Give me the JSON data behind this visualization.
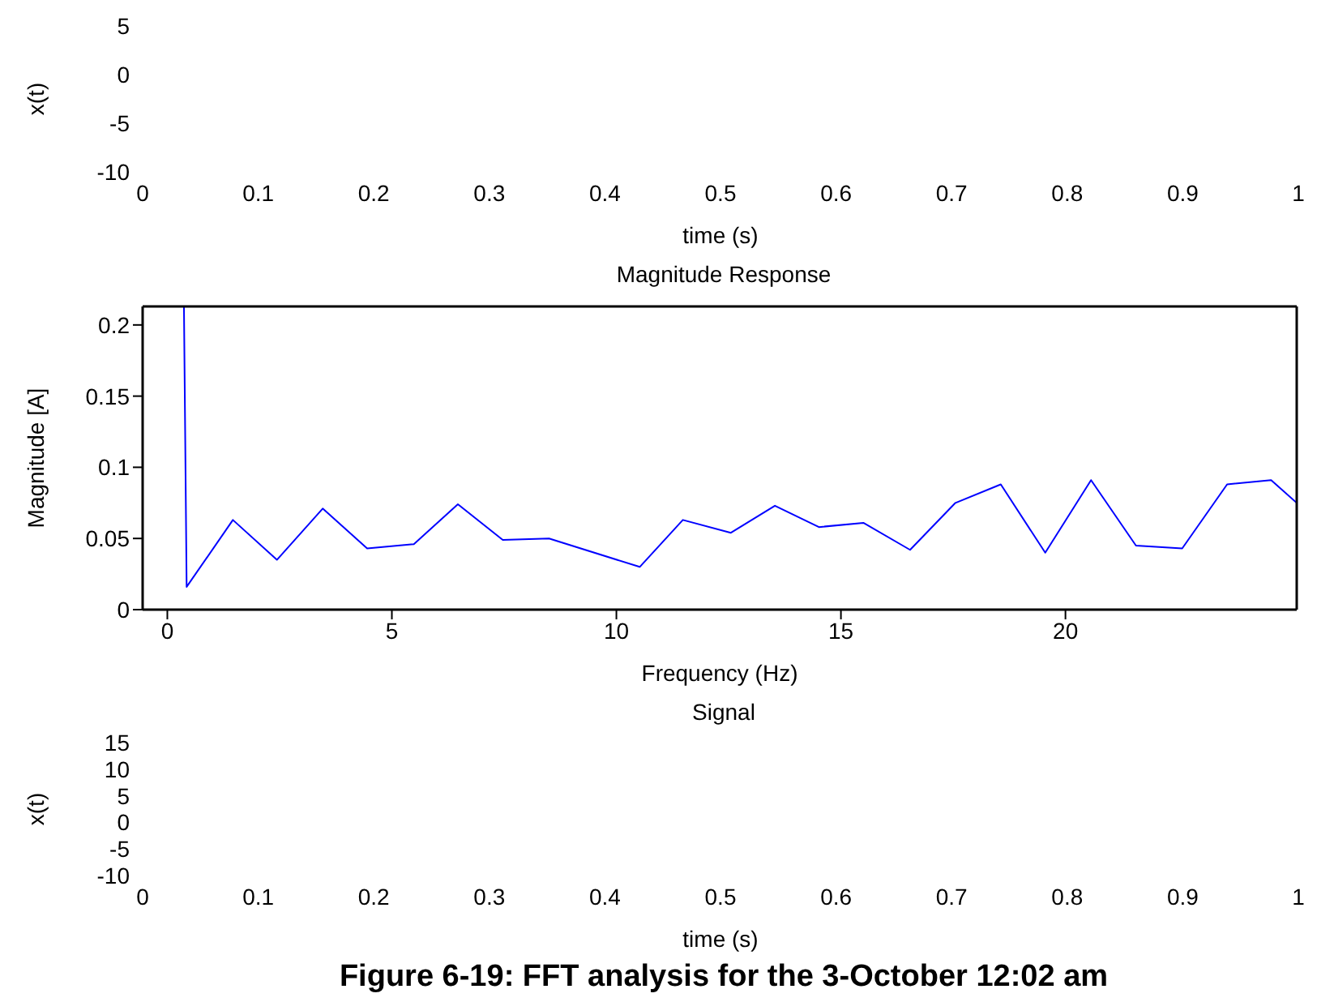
{
  "chart_data": [
    {
      "type": "line",
      "xlabel": "time (s)",
      "ylabel": "x(t)",
      "xlim": [
        0,
        1
      ],
      "xticks": [
        0,
        0.1,
        0.2,
        0.3,
        0.4,
        0.5,
        0.6,
        0.7,
        0.8,
        0.9,
        1
      ],
      "ylim": [
        -10,
        5
      ],
      "yticks": [
        -10,
        -5,
        0,
        5
      ]
    },
    {
      "type": "line",
      "title": "Magnitude Response",
      "xlabel": "Frequency (Hz)",
      "ylabel": "Magnitude [A]",
      "xlim": [
        -0.55,
        25.15
      ],
      "xticks": [
        0,
        5,
        10,
        15,
        20
      ],
      "ylim": [
        0,
        0.213
      ],
      "yticks": [
        0,
        0.05,
        0.1,
        0.15,
        0.2
      ],
      "marker": "none",
      "series": [
        {
          "color": "#0000ff",
          "x": [
            0.37,
            0.43,
            1.46,
            2.44,
            3.46,
            4.45,
            5.49,
            6.47,
            7.47,
            8.5,
            10.52,
            11.48,
            12.55,
            13.53,
            14.51,
            15.5,
            16.54,
            17.55,
            18.56,
            19.55,
            20.57,
            21.57,
            22.6,
            23.6,
            24.58,
            25.15
          ],
          "values": [
            0.213,
            0.016,
            0.063,
            0.035,
            0.071,
            0.043,
            0.046,
            0.074,
            0.049,
            0.05,
            0.03,
            0.063,
            0.054,
            0.073,
            0.058,
            0.061,
            0.042,
            0.075,
            0.088,
            0.04,
            0.091,
            0.045,
            0.043,
            0.088,
            0.091,
            0.075
          ]
        }
      ]
    },
    {
      "type": "line",
      "title": "Signal",
      "xlabel": "time (s)",
      "ylabel": "x(t)",
      "xlim": [
        0,
        1
      ],
      "xticks": [
        0,
        0.1,
        0.2,
        0.3,
        0.4,
        0.5,
        0.6,
        0.7,
        0.8,
        0.9,
        1
      ],
      "ylim": [
        -10,
        15
      ],
      "yticks": [
        -10,
        -5,
        0,
        5,
        10,
        15
      ],
      "annotations": [
        "Figure 6-19: FFT analysis for the 3-October 12:02 am"
      ]
    }
  ]
}
